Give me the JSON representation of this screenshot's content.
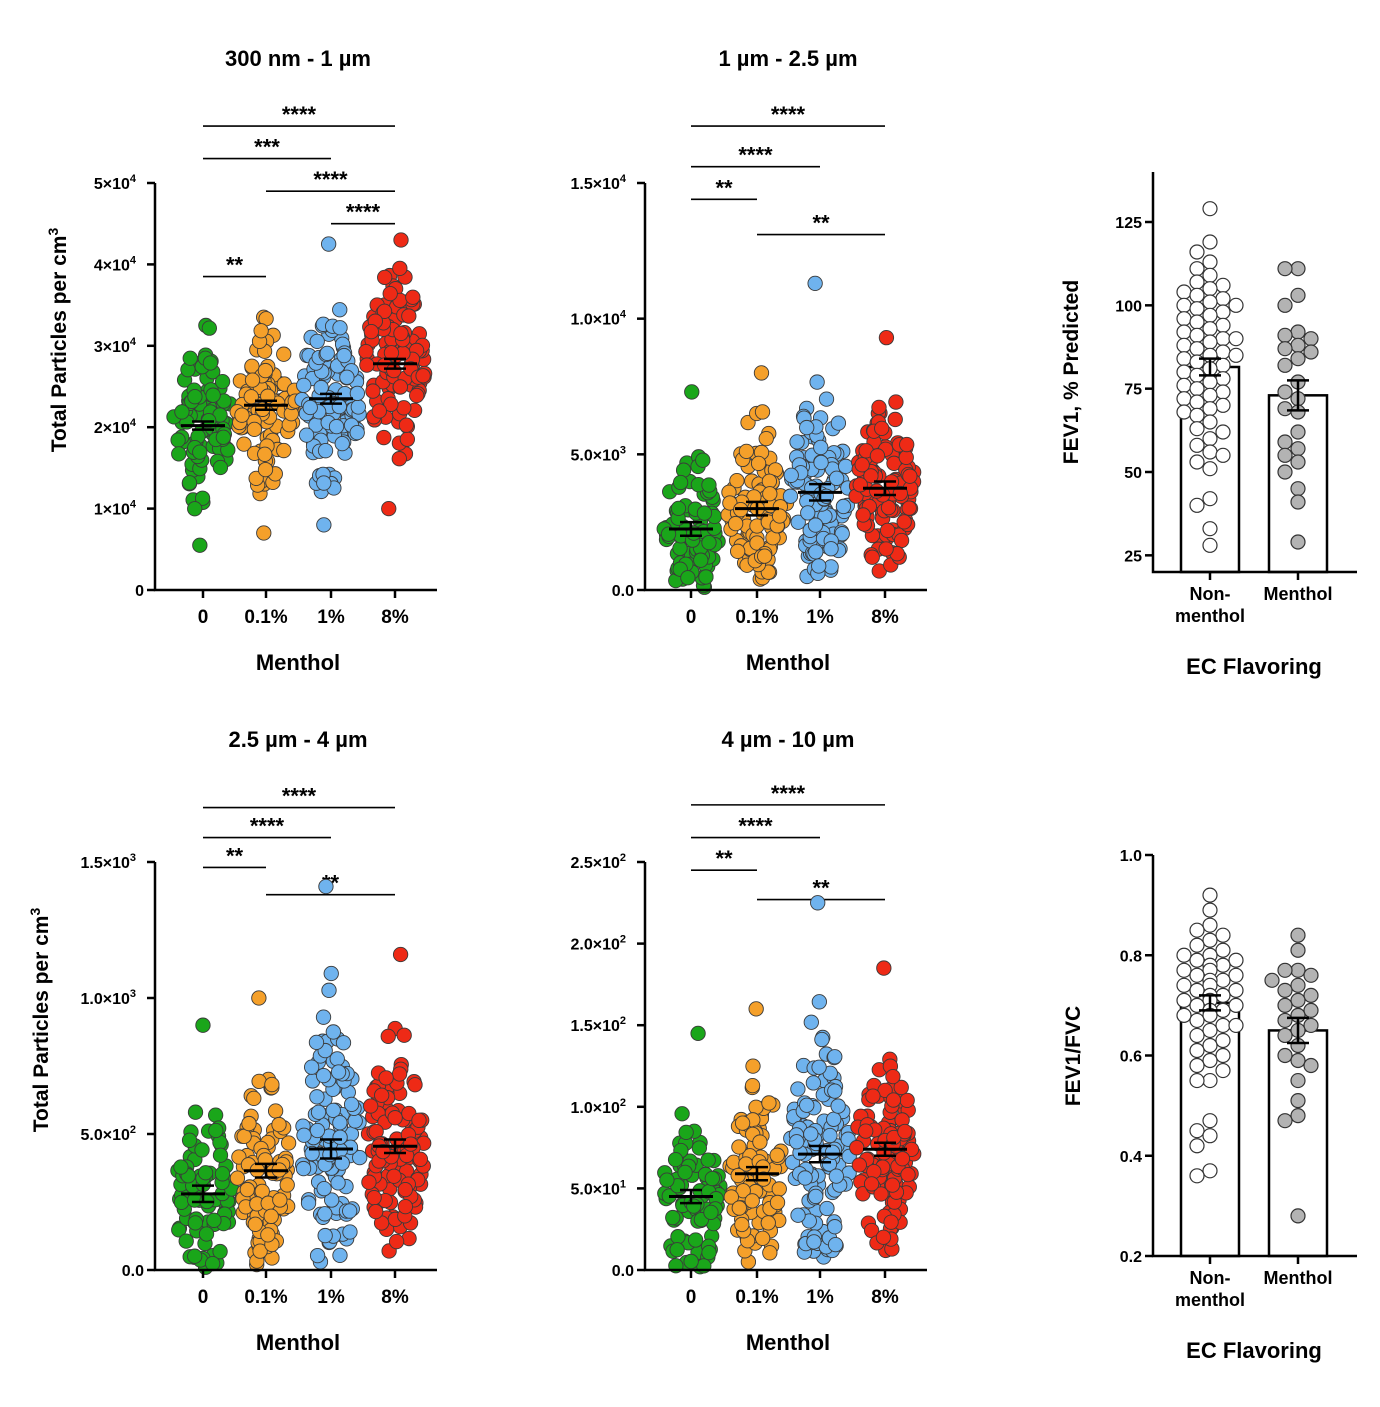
{
  "colors": {
    "green": "#1aa61a",
    "orange": "#f5a02a",
    "blue": "#6fb3ee",
    "red": "#ee2a16",
    "grey_point": "#b3b3b3",
    "white_point": "#ffffff",
    "axis": "#000000"
  },
  "chart_data": [
    {
      "type": "scatter",
      "title": "300 nm - 1 µm",
      "xlabel": "Menthol",
      "ylabel": "Total Particles per cm3",
      "ylabel_main": "Total Particles per cm",
      "ylabel_sup": "3",
      "categories": [
        "0",
        "0.1%",
        "1%",
        "8%"
      ],
      "ylim": [
        0,
        50000
      ],
      "yticks": [
        {
          "value": 0,
          "mant": "0",
          "exp": ""
        },
        {
          "value": 10000,
          "mant": "1×10",
          "exp": "4"
        },
        {
          "value": 20000,
          "mant": "2×10",
          "exp": "4"
        },
        {
          "value": 30000,
          "mant": "3×10",
          "exp": "4"
        },
        {
          "value": 40000,
          "mant": "4×10",
          "exp": "4"
        },
        {
          "value": 50000,
          "mant": "5×10",
          "exp": "4"
        }
      ],
      "series": [
        {
          "name": "0",
          "mean": 20200,
          "sem": 500,
          "min": 5500,
          "max": 32500,
          "n": 95
        },
        {
          "name": "0.1%",
          "mean": 22700,
          "sem": 550,
          "min": 7000,
          "max": 33500,
          "n": 100
        },
        {
          "name": "1%",
          "mean": 23500,
          "sem": 600,
          "min": 8000,
          "max": 42500,
          "n": 120
        },
        {
          "name": "8%",
          "mean": 27800,
          "sem": 600,
          "min": 10000,
          "max": 43000,
          "n": 115
        }
      ],
      "significance": [
        {
          "from": 0,
          "to": 3,
          "label": "****",
          "y": 57000
        },
        {
          "from": 0,
          "to": 2,
          "label": "***",
          "y": 53000
        },
        {
          "from": 1,
          "to": 3,
          "label": "****",
          "y": 49000
        },
        {
          "from": 2,
          "to": 3,
          "label": "****",
          "y": 45000
        },
        {
          "from": 0,
          "to": 1,
          "label": "**",
          "y": 38500
        }
      ]
    },
    {
      "type": "scatter",
      "title": "1 µm - 2.5 µm",
      "xlabel": "Menthol",
      "ylabel": "",
      "categories": [
        "0",
        "0.1%",
        "1%",
        "8%"
      ],
      "ylim": [
        0,
        15000
      ],
      "yticks": [
        {
          "value": 0,
          "mant": "0.0",
          "exp": ""
        },
        {
          "value": 5000,
          "mant": "5.0×10",
          "exp": "3"
        },
        {
          "value": 10000,
          "mant": "1.0×10",
          "exp": "4"
        },
        {
          "value": 15000,
          "mant": "1.5×10",
          "exp": "4"
        }
      ],
      "series": [
        {
          "name": "0",
          "mean": 2250,
          "sem": 250,
          "min": 100,
          "max": 7300,
          "n": 85
        },
        {
          "name": "0.1%",
          "mean": 3000,
          "sem": 250,
          "min": 400,
          "max": 8000,
          "n": 100
        },
        {
          "name": "1%",
          "mean": 3600,
          "sem": 300,
          "min": 500,
          "max": 11300,
          "n": 120
        },
        {
          "name": "8%",
          "mean": 3750,
          "sem": 250,
          "min": 700,
          "max": 9300,
          "n": 120
        }
      ],
      "significance": [
        {
          "from": 0,
          "to": 3,
          "label": "****",
          "y": 17100
        },
        {
          "from": 0,
          "to": 2,
          "label": "****",
          "y": 15600
        },
        {
          "from": 0,
          "to": 1,
          "label": "**",
          "y": 14400
        },
        {
          "from": 1,
          "to": 3,
          "label": "**",
          "y": 13100
        }
      ]
    },
    {
      "type": "scatter",
      "title": "2.5 µm - 4 µm",
      "xlabel": "Menthol",
      "ylabel": "Total Particles per cm3",
      "ylabel_main": "Total Particles per cm",
      "ylabel_sup": "3",
      "categories": [
        "0",
        "0.1%",
        "1%",
        "8%"
      ],
      "ylim": [
        0,
        1500
      ],
      "yticks": [
        {
          "value": 0,
          "mant": "0.0",
          "exp": ""
        },
        {
          "value": 500,
          "mant": "5.0×10",
          "exp": "2"
        },
        {
          "value": 1000,
          "mant": "1.0×10",
          "exp": "3"
        },
        {
          "value": 1500,
          "mant": "1.5×10",
          "exp": "3"
        }
      ],
      "series": [
        {
          "name": "0",
          "mean": 280,
          "sem": 30,
          "min": 10,
          "max": 900,
          "n": 85
        },
        {
          "name": "0.1%",
          "mean": 365,
          "sem": 25,
          "min": 20,
          "max": 1000,
          "n": 100
        },
        {
          "name": "1%",
          "mean": 445,
          "sem": 35,
          "min": 30,
          "max": 1410,
          "n": 120
        },
        {
          "name": "8%",
          "mean": 455,
          "sem": 25,
          "min": 70,
          "max": 1160,
          "n": 120
        }
      ],
      "significance": [
        {
          "from": 0,
          "to": 3,
          "label": "****",
          "y": 1700
        },
        {
          "from": 0,
          "to": 2,
          "label": "****",
          "y": 1590
        },
        {
          "from": 0,
          "to": 1,
          "label": "**",
          "y": 1480
        },
        {
          "from": 1,
          "to": 3,
          "label": "**",
          "y": 1380
        }
      ]
    },
    {
      "type": "scatter",
      "title": "4 µm - 10 µm",
      "xlabel": "Menthol",
      "ylabel": "",
      "categories": [
        "0",
        "0.1%",
        "1%",
        "8%"
      ],
      "ylim": [
        0,
        250
      ],
      "yticks": [
        {
          "value": 0,
          "mant": "0.0",
          "exp": ""
        },
        {
          "value": 50,
          "mant": "5.0×10",
          "exp": "1"
        },
        {
          "value": 100,
          "mant": "1.0×10",
          "exp": "2"
        },
        {
          "value": 150,
          "mant": "1.5×10",
          "exp": "2"
        },
        {
          "value": 200,
          "mant": "2.0×10",
          "exp": "2"
        },
        {
          "value": 250,
          "mant": "2.5×10",
          "exp": "2"
        }
      ],
      "series": [
        {
          "name": "0",
          "mean": 45,
          "sem": 4,
          "min": 2,
          "max": 145,
          "n": 85
        },
        {
          "name": "0.1%",
          "mean": 59,
          "sem": 4,
          "min": 5,
          "max": 160,
          "n": 100
        },
        {
          "name": "1%",
          "mean": 71,
          "sem": 5,
          "min": 8,
          "max": 225,
          "n": 120
        },
        {
          "name": "8%",
          "mean": 74,
          "sem": 4,
          "min": 12,
          "max": 185,
          "n": 120
        }
      ],
      "significance": [
        {
          "from": 0,
          "to": 3,
          "label": "****",
          "y": 285
        },
        {
          "from": 0,
          "to": 2,
          "label": "****",
          "y": 265
        },
        {
          "from": 0,
          "to": 1,
          "label": "**",
          "y": 245
        },
        {
          "from": 1,
          "to": 3,
          "label": "**",
          "y": 227
        }
      ]
    },
    {
      "type": "bar",
      "title": "",
      "xlabel": "EC Flavoring",
      "ylabel": "FEV1, % Predicted",
      "categories": [
        "Non-\nmenthol",
        "Menthol"
      ],
      "ylim": [
        20,
        140
      ],
      "yticks": [
        {
          "value": 25,
          "mant": "25",
          "exp": ""
        },
        {
          "value": 50,
          "mant": "50",
          "exp": ""
        },
        {
          "value": 75,
          "mant": "75",
          "exp": ""
        },
        {
          "value": 100,
          "mant": "100",
          "exp": ""
        },
        {
          "value": 125,
          "mant": "125",
          "exp": ""
        }
      ],
      "series": [
        {
          "name": "Non-menthol",
          "mean": 81.5,
          "sem": 2.5,
          "points": [
            129,
            119,
            116,
            113,
            111,
            109,
            107,
            106,
            105,
            104,
            103,
            102,
            101,
            100,
            100,
            99,
            98,
            97,
            96,
            95,
            94,
            93,
            92,
            91,
            90,
            90,
            89,
            88,
            87,
            86,
            85,
            85,
            84,
            83,
            82,
            81,
            80,
            79,
            78,
            77,
            76,
            75,
            74,
            73,
            72,
            71,
            70,
            69,
            68,
            67,
            65,
            63,
            62,
            60,
            58,
            56,
            55,
            53,
            51,
            42,
            40,
            33,
            28
          ]
        },
        {
          "name": "Menthol",
          "mean": 73,
          "sem": 4.5,
          "points": [
            111,
            111,
            103,
            100,
            92,
            91,
            90,
            88,
            87,
            86,
            84,
            82,
            77,
            74,
            72,
            69,
            68,
            62,
            59,
            57,
            55,
            53,
            50,
            45,
            41,
            29
          ]
        }
      ]
    },
    {
      "type": "bar",
      "title": "",
      "xlabel": "EC Flavoring",
      "ylabel": "FEV1/FVC",
      "categories": [
        "Non-\nmenthol",
        "Menthol"
      ],
      "ylim": [
        0.2,
        1.0
      ],
      "yticks": [
        {
          "value": 0.2,
          "mant": "0.2",
          "exp": ""
        },
        {
          "value": 0.4,
          "mant": "0.4",
          "exp": ""
        },
        {
          "value": 0.6,
          "mant": "0.6",
          "exp": ""
        },
        {
          "value": 0.8,
          "mant": "0.8",
          "exp": ""
        },
        {
          "value": 1.0,
          "mant": "1.0",
          "exp": ""
        }
      ],
      "series": [
        {
          "name": "Non-menthol",
          "mean": 0.705,
          "sem": 0.015,
          "points": [
            0.92,
            0.89,
            0.86,
            0.85,
            0.84,
            0.83,
            0.82,
            0.81,
            0.8,
            0.8,
            0.79,
            0.79,
            0.78,
            0.78,
            0.77,
            0.77,
            0.76,
            0.76,
            0.75,
            0.75,
            0.74,
            0.74,
            0.73,
            0.73,
            0.72,
            0.72,
            0.71,
            0.71,
            0.7,
            0.7,
            0.69,
            0.69,
            0.68,
            0.68,
            0.67,
            0.66,
            0.66,
            0.65,
            0.64,
            0.63,
            0.62,
            0.61,
            0.6,
            0.59,
            0.58,
            0.57,
            0.55,
            0.55,
            0.47,
            0.45,
            0.44,
            0.42,
            0.37,
            0.36
          ]
        },
        {
          "name": "Menthol",
          "mean": 0.65,
          "sem": 0.025,
          "points": [
            0.84,
            0.81,
            0.77,
            0.77,
            0.76,
            0.75,
            0.74,
            0.73,
            0.72,
            0.71,
            0.7,
            0.69,
            0.68,
            0.67,
            0.66,
            0.65,
            0.64,
            0.62,
            0.6,
            0.59,
            0.58,
            0.55,
            0.51,
            0.48,
            0.47,
            0.28
          ]
        }
      ]
    }
  ]
}
